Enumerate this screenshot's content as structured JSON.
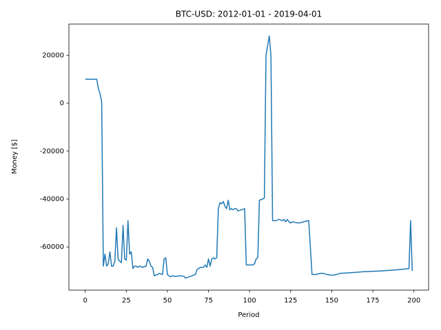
{
  "chart_data": {
    "type": "line",
    "title": "BTC-USD: 2012-01-01 - 2019-04-01",
    "x_label": "Period",
    "y_label": "Money [$]",
    "xlim": [
      -9.95,
      208.95
    ],
    "ylim": [
      -78000,
      33000
    ],
    "xticks": [
      0,
      25,
      50,
      75,
      100,
      125,
      150,
      175,
      200
    ],
    "yticks": [
      -60000,
      -40000,
      -20000,
      0,
      20000
    ],
    "series": [
      {
        "name": "Money",
        "color": "#1f77b4",
        "x": [
          0,
          7,
          8,
          9,
          10,
          11,
          12,
          13,
          14,
          15,
          16,
          17,
          18,
          19,
          20,
          21,
          22,
          23,
          24,
          25,
          26,
          27,
          28,
          29,
          30,
          31,
          32,
          33,
          35,
          37,
          38,
          39,
          40,
          41,
          42,
          44,
          45,
          47,
          48,
          49,
          50,
          52,
          53,
          55,
          57,
          60,
          61,
          65,
          67,
          68,
          70,
          72,
          73,
          74,
          75,
          76,
          77,
          78,
          79,
          80,
          81,
          82,
          83,
          84,
          85,
          86,
          87,
          88,
          89,
          90,
          91,
          92,
          93,
          95,
          97,
          98,
          102,
          103,
          104,
          105,
          106,
          108,
          109,
          110,
          111,
          112,
          113,
          114,
          116,
          118,
          120,
          121,
          122,
          123,
          124,
          125,
          126,
          128,
          130,
          133,
          136,
          138,
          140,
          143,
          145,
          147,
          150,
          153,
          155,
          160,
          170,
          180,
          190,
          197,
          198,
          199
        ],
        "values": [
          10000,
          10000,
          6000,
          4000,
          500,
          -68000,
          -63000,
          -68000,
          -67000,
          -62000,
          -68000,
          -68000,
          -66000,
          -52000,
          -65000,
          -66000,
          -66500,
          -51000,
          -65000,
          -65500,
          -49000,
          -63000,
          -62000,
          -69000,
          -68000,
          -68000,
          -68500,
          -68000,
          -68500,
          -68000,
          -65000,
          -66000,
          -68000,
          -68500,
          -72000,
          -71500,
          -71000,
          -71500,
          -65000,
          -64500,
          -71500,
          -72500,
          -72000,
          -72300,
          -72000,
          -72200,
          -73000,
          -72000,
          -71500,
          -69500,
          -68500,
          -68500,
          -67500,
          -68500,
          -65000,
          -68000,
          -65000,
          -64500,
          -65000,
          -64500,
          -44000,
          -41500,
          -42000,
          -41000,
          -43000,
          -44000,
          -40500,
          -44500,
          -44000,
          -44500,
          -44000,
          -44000,
          -45000,
          -44500,
          -44000,
          -67500,
          -67500,
          -67000,
          -65000,
          -64500,
          -40500,
          -40000,
          -39500,
          20000,
          24000,
          28000,
          20000,
          -49000,
          -49000,
          -48500,
          -49000,
          -48500,
          -49500,
          -48500,
          -49500,
          -50000,
          -49500,
          -49800,
          -50000,
          -49500,
          -49000,
          -71500,
          -71500,
          -71000,
          -71000,
          -71500,
          -71800,
          -71500,
          -71000,
          -70800,
          -70300,
          -70000,
          -69500,
          -69000,
          -49000,
          -70000
        ]
      }
    ]
  }
}
